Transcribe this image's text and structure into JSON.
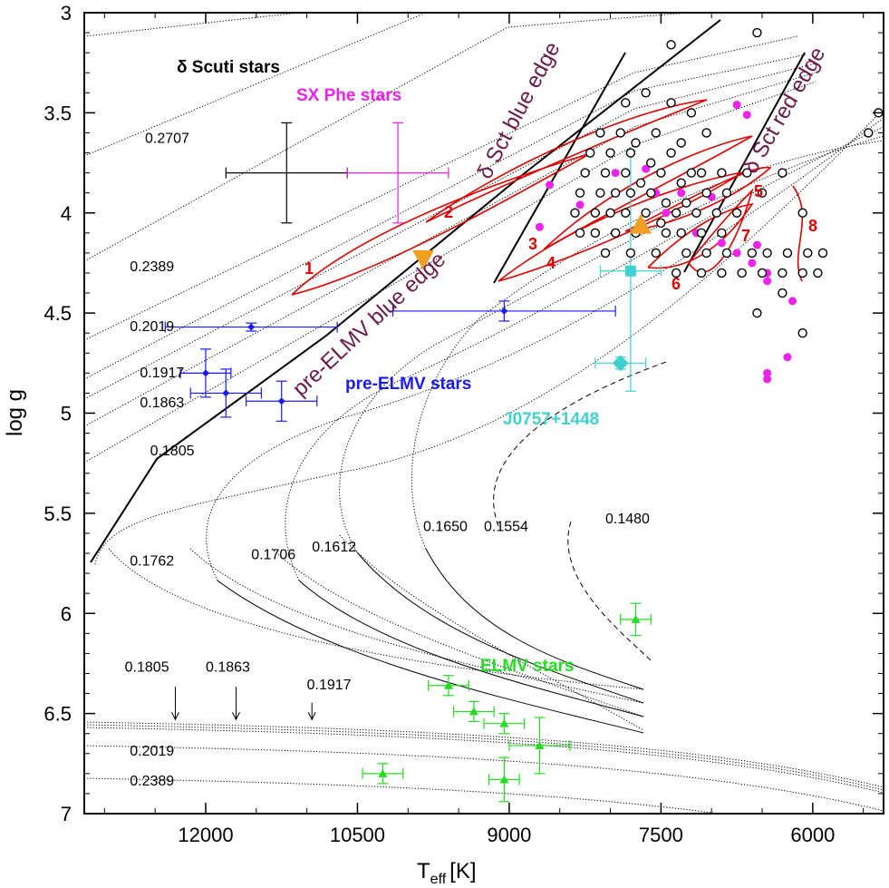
{
  "chart_data": {
    "type": "scatter",
    "xlabel_main": "T",
    "xlabel_sub": "eff",
    "xlabel_unit": "[K]",
    "ylabel": "log g",
    "xlim": [
      13200,
      5300
    ],
    "ylim": [
      3,
      7
    ],
    "xticks": [
      "12000",
      "10500",
      "9000",
      "7500",
      "6000"
    ],
    "xtick_values": [
      12000,
      10500,
      9000,
      7500,
      6000
    ],
    "yticks": [
      "3",
      "3.5",
      "4",
      "4.5",
      "5",
      "5.5",
      "6",
      "6.5",
      "7"
    ],
    "ytick_values": [
      3,
      3.5,
      4,
      4.5,
      5,
      5.5,
      6,
      6.5,
      7
    ],
    "group_labels": {
      "dsct": "δ Scuti stars",
      "sxphe": "SX Phe stars",
      "preelmv": "pre-ELMV stars",
      "j0757": "J0757+1448",
      "elmv": "ELMV stars"
    },
    "edge_labels": {
      "dsct_blue": "δ Sct blue edge",
      "dsct_red": "δ Sct red edge",
      "preelmv_blue": "pre-ELMV blue edge"
    },
    "track_mass_labels": [
      {
        "text": "0.2707",
        "t": 12600,
        "g": 3.65
      },
      {
        "text": "0.2389",
        "t": 12750,
        "g": 4.29
      },
      {
        "text": "0.2019",
        "t": 12750,
        "g": 4.59
      },
      {
        "text": "0.1917",
        "t": 12650,
        "g": 4.82
      },
      {
        "text": "0.1863",
        "t": 12650,
        "g": 4.97
      },
      {
        "text": "0.1805",
        "t": 12550,
        "g": 5.21
      },
      {
        "text": "0.1762",
        "t": 12750,
        "g": 5.76
      },
      {
        "text": "0.1706",
        "t": 11550,
        "g": 5.73
      },
      {
        "text": "0.1612",
        "t": 10950,
        "g": 5.69
      },
      {
        "text": "0.1650",
        "t": 9850,
        "g": 5.59
      },
      {
        "text": "0.1554",
        "t": 9250,
        "g": 5.59
      },
      {
        "text": "0.1480",
        "t": 8050,
        "g": 5.55
      },
      {
        "text": "0.1805",
        "t": 12800,
        "g": 6.29
      },
      {
        "text": "0.1863",
        "t": 12000,
        "g": 6.29
      },
      {
        "text": "0.1917",
        "t": 11000,
        "g": 6.38
      },
      {
        "text": "0.2019",
        "t": 12750,
        "g": 6.71
      },
      {
        "text": "0.2389",
        "t": 12750,
        "g": 6.86
      }
    ],
    "red_track_numbers": [
      "1",
      "2",
      "3",
      "4",
      "5",
      "6",
      "7",
      "8"
    ],
    "series": [
      {
        "name": "pre-ELMV stars",
        "color": "#1a1aff",
        "marker": "diamond",
        "points": [
          {
            "t": 11550,
            "g": 4.57,
            "xerr": 850,
            "yerr": 0.02
          },
          {
            "t": 12000,
            "g": 4.8,
            "xerr": 250,
            "yerr": 0.12
          },
          {
            "t": 11800,
            "g": 4.9,
            "xerr": 350,
            "yerr": 0.12
          },
          {
            "t": 11250,
            "g": 4.94,
            "xerr": 350,
            "yerr": 0.1
          },
          {
            "t": 9050,
            "g": 4.49,
            "xerr": 1100,
            "yerr": 0.05
          }
        ]
      },
      {
        "name": "ELMV stars",
        "color": "#22dd22",
        "marker": "triangle",
        "points": [
          {
            "t": 7750,
            "g": 6.03,
            "xerr": 150,
            "yerr": 0.08
          },
          {
            "t": 9600,
            "g": 6.36,
            "xerr": 200,
            "yerr": 0.05
          },
          {
            "t": 9350,
            "g": 6.49,
            "xerr": 200,
            "yerr": 0.05
          },
          {
            "t": 9050,
            "g": 6.55,
            "xerr": 200,
            "yerr": 0.05
          },
          {
            "t": 8700,
            "g": 6.66,
            "xerr": 300,
            "yerr": 0.14
          },
          {
            "t": 10250,
            "g": 6.8,
            "xerr": 200,
            "yerr": 0.05
          },
          {
            "t": 9050,
            "g": 6.83,
            "xerr": 150,
            "yerr": 0.11
          }
        ]
      },
      {
        "name": "J0757+1448",
        "color": "#40d0d0",
        "marker": "diamond+square",
        "points": [
          {
            "t": 7900,
            "g": 4.75,
            "xerr": 250,
            "yerr": 0.03
          },
          {
            "t": 7800,
            "g": 4.29,
            "xerr": 300,
            "yerr": 0.6
          }
        ]
      },
      {
        "name": "SX Phe stars",
        "color": "#ee22ee",
        "marker": "circle",
        "points": [
          {
            "t": 8300,
            "g": 3.96
          },
          {
            "t": 8600,
            "g": 3.86
          },
          {
            "t": 8700,
            "g": 4.07
          },
          {
            "t": 7950,
            "g": 3.8
          },
          {
            "t": 7650,
            "g": 3.78
          },
          {
            "t": 7550,
            "g": 3.9
          },
          {
            "t": 7450,
            "g": 4.0
          },
          {
            "t": 7300,
            "g": 3.9
          },
          {
            "t": 7150,
            "g": 4.1
          },
          {
            "t": 7000,
            "g": 3.92
          },
          {
            "t": 6900,
            "g": 4.15
          },
          {
            "t": 6750,
            "g": 3.46
          },
          {
            "t": 6650,
            "g": 3.51
          },
          {
            "t": 6750,
            "g": 4.2
          },
          {
            "t": 6600,
            "g": 4.25
          },
          {
            "t": 6450,
            "g": 4.3
          },
          {
            "t": 6450,
            "g": 4.34
          },
          {
            "t": 6550,
            "g": 4.16
          },
          {
            "t": 6200,
            "g": 4.44
          },
          {
            "t": 6250,
            "g": 4.72
          },
          {
            "t": 6450,
            "g": 4.8
          },
          {
            "t": 6450,
            "g": 4.83
          }
        ]
      },
      {
        "name": "δ Scuti stars",
        "color": "#000000",
        "marker": "open-circle",
        "points": [
          {
            "t": 7400,
            "g": 3.16
          },
          {
            "t": 6550,
            "g": 3.1
          },
          {
            "t": 7850,
            "g": 3.45
          },
          {
            "t": 7650,
            "g": 3.4
          },
          {
            "t": 7400,
            "g": 3.45
          },
          {
            "t": 7200,
            "g": 3.5
          },
          {
            "t": 8100,
            "g": 3.6
          },
          {
            "t": 7900,
            "g": 3.6
          },
          {
            "t": 7750,
            "g": 3.65
          },
          {
            "t": 7550,
            "g": 3.6
          },
          {
            "t": 7300,
            "g": 3.65
          },
          {
            "t": 7050,
            "g": 3.6
          },
          {
            "t": 8200,
            "g": 3.7
          },
          {
            "t": 8000,
            "g": 3.7
          },
          {
            "t": 7800,
            "g": 3.7
          },
          {
            "t": 7600,
            "g": 3.75
          },
          {
            "t": 7400,
            "g": 3.7
          },
          {
            "t": 7200,
            "g": 3.8
          },
          {
            "t": 8250,
            "g": 3.8
          },
          {
            "t": 8050,
            "g": 3.8
          },
          {
            "t": 7850,
            "g": 3.8
          },
          {
            "t": 7700,
            "g": 3.85
          },
          {
            "t": 7500,
            "g": 3.8
          },
          {
            "t": 7300,
            "g": 3.85
          },
          {
            "t": 7100,
            "g": 3.8
          },
          {
            "t": 6900,
            "g": 3.8
          },
          {
            "t": 6650,
            "g": 3.8
          },
          {
            "t": 6300,
            "g": 3.8
          },
          {
            "t": 8300,
            "g": 3.9
          },
          {
            "t": 8100,
            "g": 3.9
          },
          {
            "t": 7950,
            "g": 3.9
          },
          {
            "t": 7800,
            "g": 3.9
          },
          {
            "t": 7600,
            "g": 3.9
          },
          {
            "t": 7450,
            "g": 3.95
          },
          {
            "t": 7250,
            "g": 3.95
          },
          {
            "t": 7050,
            "g": 3.9
          },
          {
            "t": 6850,
            "g": 3.9
          },
          {
            "t": 6500,
            "g": 3.9
          },
          {
            "t": 8350,
            "g": 4.0
          },
          {
            "t": 8150,
            "g": 4.0
          },
          {
            "t": 8000,
            "g": 4.0
          },
          {
            "t": 7850,
            "g": 4.0
          },
          {
            "t": 7650,
            "g": 4.0
          },
          {
            "t": 7500,
            "g": 4.05
          },
          {
            "t": 7350,
            "g": 4.0
          },
          {
            "t": 7150,
            "g": 4.0
          },
          {
            "t": 6950,
            "g": 4.0
          },
          {
            "t": 6750,
            "g": 4.0
          },
          {
            "t": 6100,
            "g": 4.0
          },
          {
            "t": 8300,
            "g": 4.1
          },
          {
            "t": 8150,
            "g": 4.1
          },
          {
            "t": 7950,
            "g": 4.1
          },
          {
            "t": 7750,
            "g": 4.1
          },
          {
            "t": 7450,
            "g": 4.1
          },
          {
            "t": 7300,
            "g": 4.1
          },
          {
            "t": 7100,
            "g": 4.1
          },
          {
            "t": 6900,
            "g": 4.1
          },
          {
            "t": 8050,
            "g": 4.2
          },
          {
            "t": 7800,
            "g": 4.2
          },
          {
            "t": 7550,
            "g": 4.2
          },
          {
            "t": 7250,
            "g": 4.2
          },
          {
            "t": 7050,
            "g": 4.2
          },
          {
            "t": 6850,
            "g": 4.2
          },
          {
            "t": 6600,
            "g": 4.2
          },
          {
            "t": 6450,
            "g": 4.2
          },
          {
            "t": 6250,
            "g": 4.2
          },
          {
            "t": 6050,
            "g": 4.2
          },
          {
            "t": 5900,
            "g": 4.2
          },
          {
            "t": 7350,
            "g": 4.3
          },
          {
            "t": 7100,
            "g": 4.3
          },
          {
            "t": 6900,
            "g": 4.3
          },
          {
            "t": 6700,
            "g": 4.3
          },
          {
            "t": 6500,
            "g": 4.3
          },
          {
            "t": 6300,
            "g": 4.3
          },
          {
            "t": 6100,
            "g": 4.3
          },
          {
            "t": 5950,
            "g": 4.3
          },
          {
            "t": 6300,
            "g": 4.4
          },
          {
            "t": 6550,
            "g": 4.5
          },
          {
            "t": 6100,
            "g": 4.6
          },
          {
            "t": 5450,
            "g": 3.6
          },
          {
            "t": 5350,
            "g": 3.5
          }
        ]
      },
      {
        "name": "δ Scuti mean",
        "color": "#000000",
        "marker": "cross",
        "points": [
          {
            "t": 11200,
            "g": 3.8,
            "xerr": 600,
            "yerr": 0.25
          }
        ]
      },
      {
        "name": "SX Phe mean",
        "color": "#ee22ee",
        "marker": "cross",
        "points": [
          {
            "t": 10100,
            "g": 3.8,
            "xerr": 500,
            "yerr": 0.25
          }
        ]
      },
      {
        "name": "orange triangles",
        "color": "#f0a020",
        "marker": "triangle",
        "points": [
          {
            "t": 9850,
            "g": 4.23,
            "dir": "down"
          },
          {
            "t": 7700,
            "g": 4.06,
            "dir": "up"
          }
        ]
      }
    ]
  }
}
